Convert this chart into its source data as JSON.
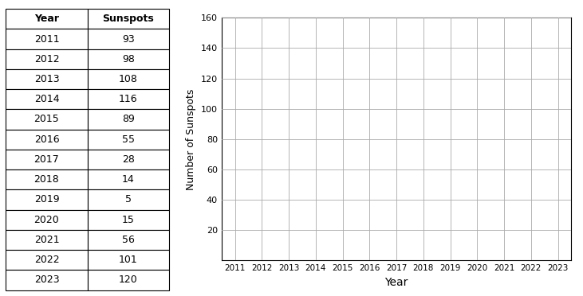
{
  "years": [
    2011,
    2012,
    2013,
    2014,
    2015,
    2016,
    2017,
    2018,
    2019,
    2020,
    2021,
    2022,
    2023
  ],
  "sunspots": [
    93,
    98,
    108,
    116,
    89,
    55,
    28,
    14,
    5,
    15,
    56,
    101,
    120
  ],
  "table_header": [
    "Year",
    "Sunspots"
  ],
  "ylabel": "Number of Sunspots",
  "xlabel": "Year",
  "ylim": [
    0,
    160
  ],
  "yticks": [
    20,
    40,
    60,
    80,
    100,
    120,
    140,
    160
  ],
  "grid_color": "#aaaaaa",
  "table_border_color": "#000000",
  "fig_width": 7.31,
  "fig_height": 3.72,
  "dpi": 100
}
